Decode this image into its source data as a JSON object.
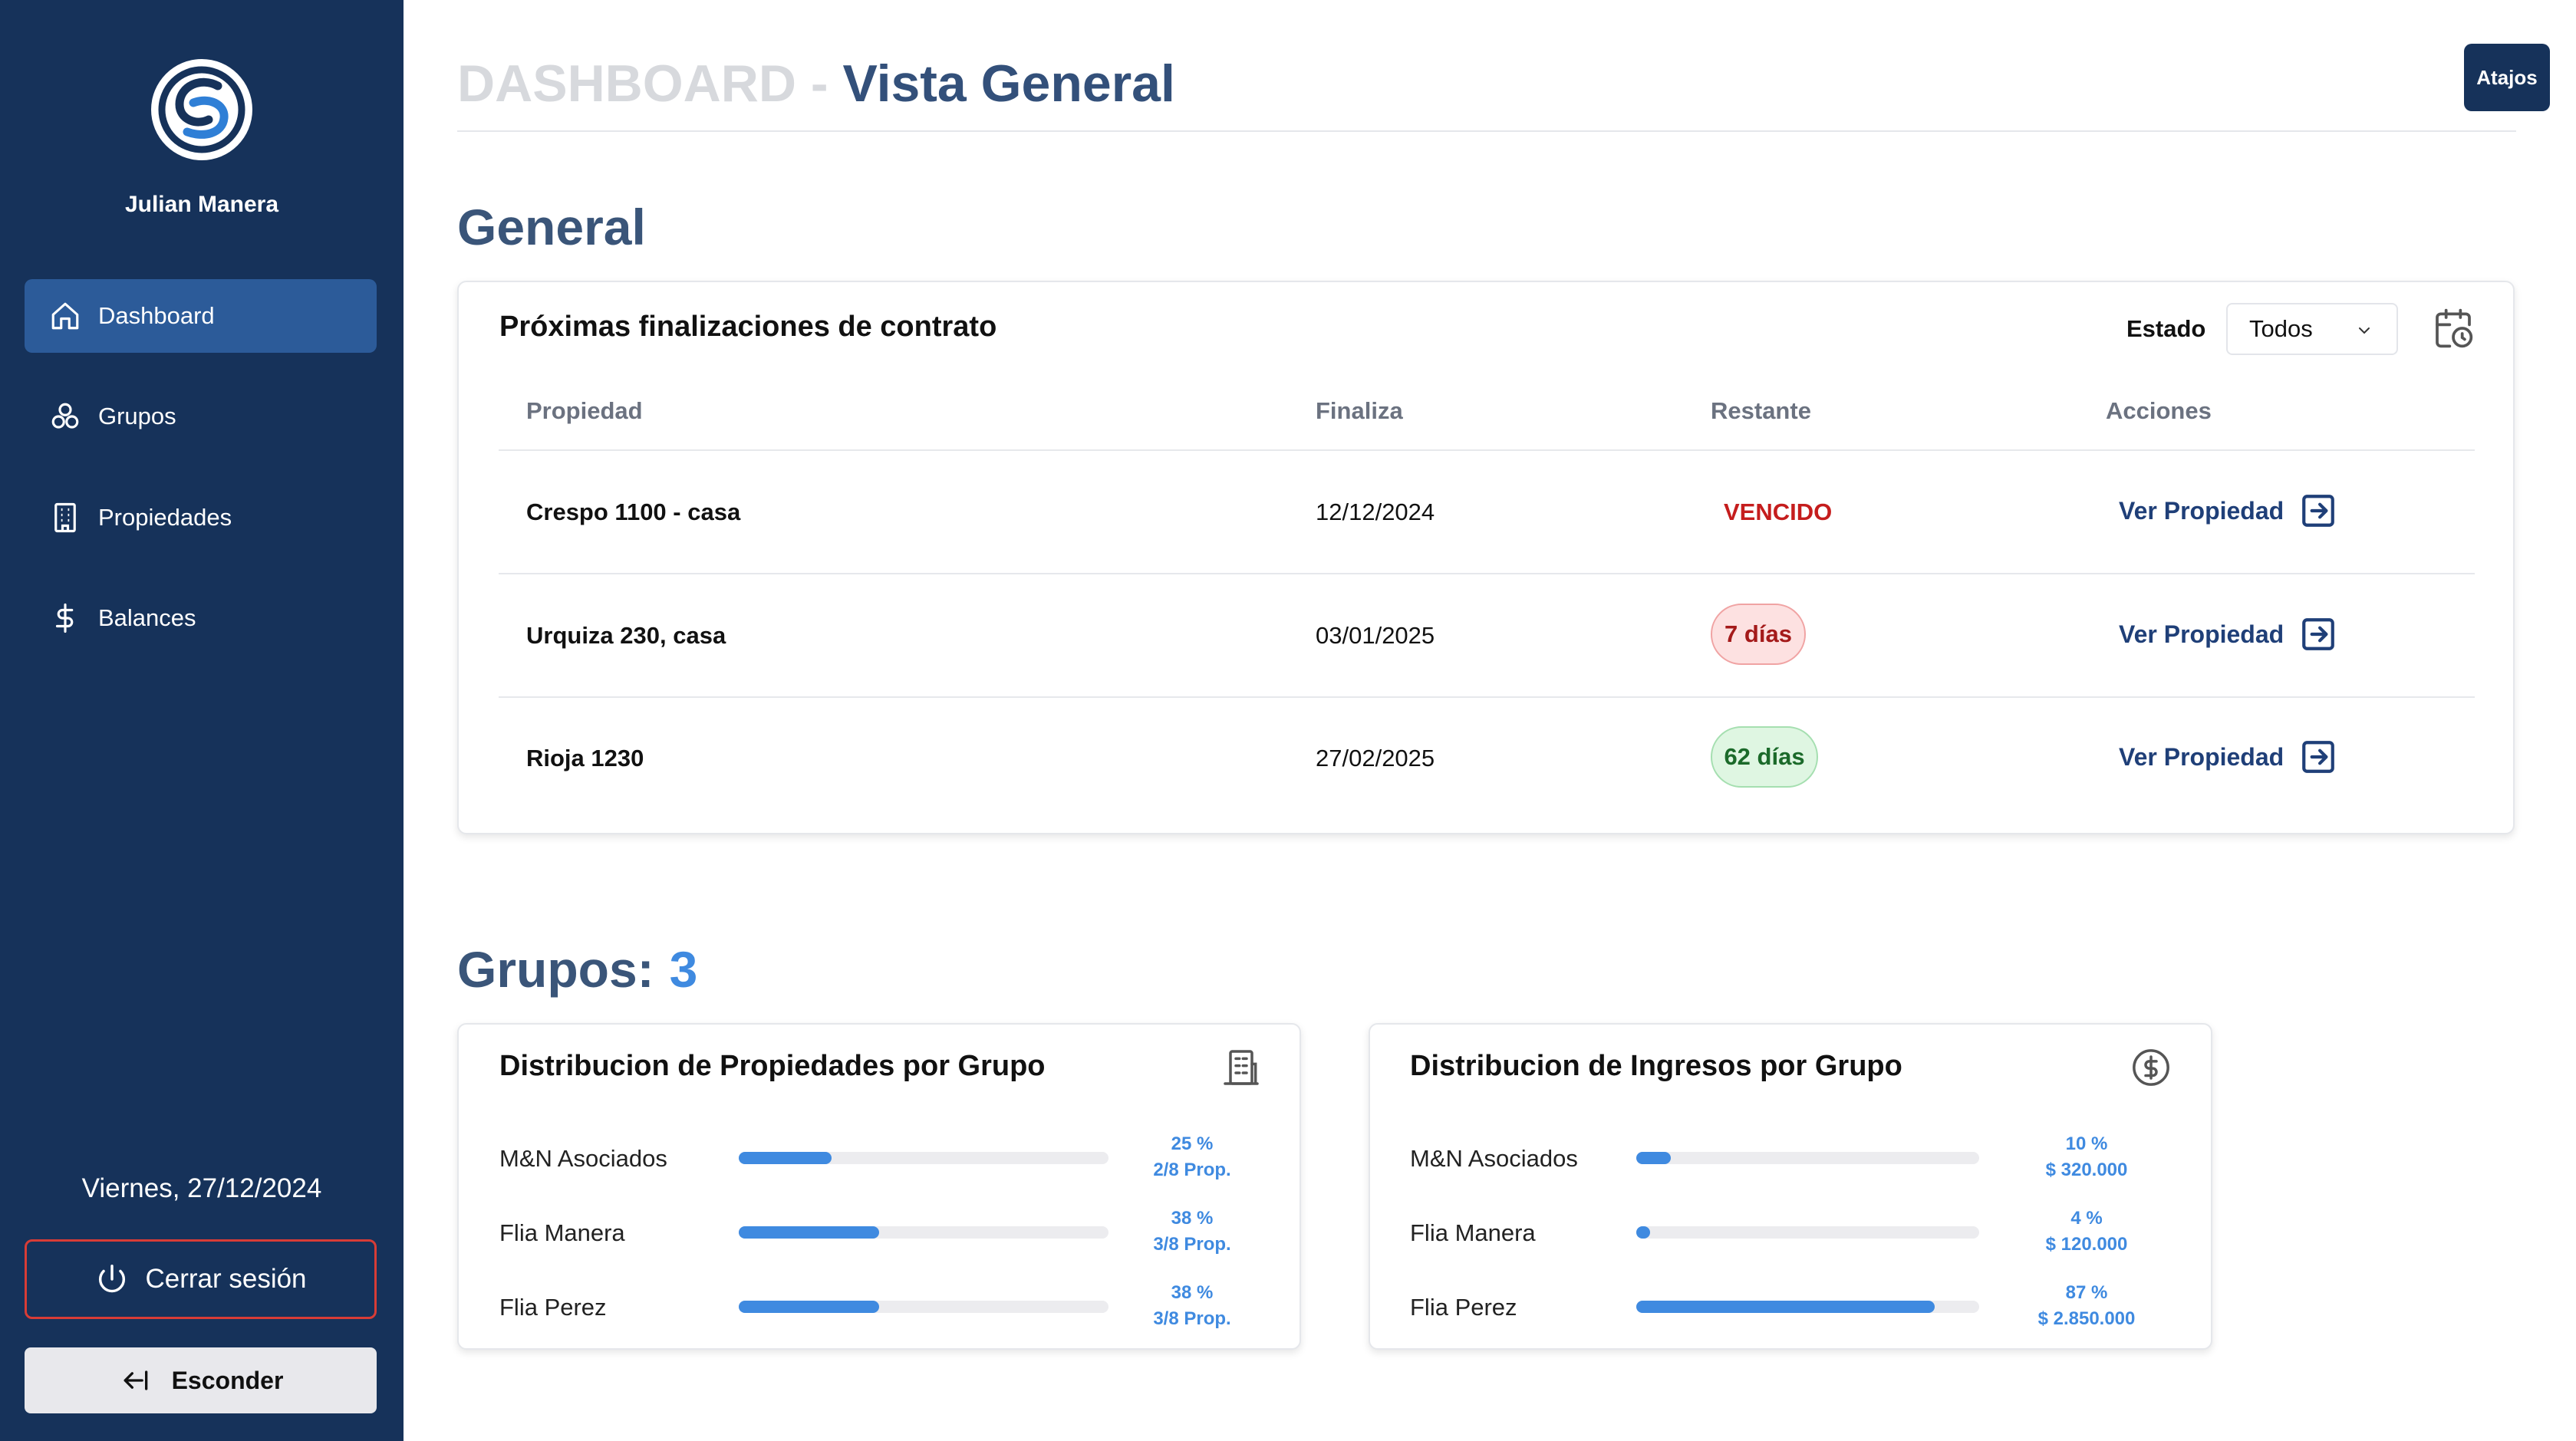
{
  "sidebar": {
    "user_name": "Julian Manera",
    "nav": [
      {
        "label": "Dashboard",
        "icon": "home-icon",
        "active": true
      },
      {
        "label": "Grupos",
        "icon": "groups-icon",
        "active": false
      },
      {
        "label": "Propiedades",
        "icon": "building-icon",
        "active": false
      },
      {
        "label": "Balances",
        "icon": "dollar-icon",
        "active": false
      }
    ],
    "date": "Viernes, 27/12/2024",
    "logout_label": "Cerrar sesión",
    "hide_label": "Esconder"
  },
  "header": {
    "title_prefix": "DASHBOARD - ",
    "title_main": "Vista General",
    "atajos_label": "Atajos"
  },
  "general": {
    "section_title": "General",
    "card_title": "Próximas finalizaciones de contrato",
    "estado_label": "Estado",
    "estado_value": "Todos",
    "columns": [
      "Propiedad",
      "Finaliza",
      "Restante",
      "Acciones"
    ],
    "rows": [
      {
        "propiedad": "Crespo 1100 - casa",
        "finaliza": "12/12/2024",
        "restante": "VENCIDO",
        "status": "vencido",
        "accion": "Ver Propiedad"
      },
      {
        "propiedad": "Urquiza 230, casa",
        "finaliza": "03/01/2025",
        "restante": "7 días",
        "status": "red",
        "accion": "Ver Propiedad"
      },
      {
        "propiedad": "Rioja 1230",
        "finaliza": "27/02/2025",
        "restante": "62 días",
        "status": "green",
        "accion": "Ver Propiedad"
      }
    ]
  },
  "grupos": {
    "section_label": "Grupos:",
    "count": "3",
    "propiedades_card": {
      "title": "Distribucion de Propiedades por Grupo",
      "icon": "building-icon",
      "items": [
        {
          "label": "M&N Asociados",
          "fraction": 0.25,
          "pct": "25 %",
          "detail": "2/8 Prop."
        },
        {
          "label": "Flia Manera",
          "fraction": 0.38,
          "pct": "38 %",
          "detail": "3/8 Prop."
        },
        {
          "label": "Flia Perez",
          "fraction": 0.38,
          "pct": "38 %",
          "detail": "3/8 Prop."
        }
      ]
    },
    "ingresos_card": {
      "title": "Distribucion de Ingresos por Grupo",
      "icon": "dollar-circle-icon",
      "items": [
        {
          "label": "M&N Asociados",
          "fraction": 0.1,
          "pct": "10 %",
          "detail": "$ 320.000"
        },
        {
          "label": "Flia Manera",
          "fraction": 0.04,
          "pct": "4 %",
          "detail": "$ 120.000"
        },
        {
          "label": "Flia Perez",
          "fraction": 0.87,
          "pct": "87 %",
          "detail": "$ 2.850.000"
        }
      ]
    }
  },
  "colors": {
    "sidebar_bg": "#16325a",
    "active_nav": "#2c5b99",
    "accent_blue": "#3f8ae0",
    "title_blue": "#33507a",
    "danger": "#c51d1d",
    "success": "#1b6a2a"
  }
}
